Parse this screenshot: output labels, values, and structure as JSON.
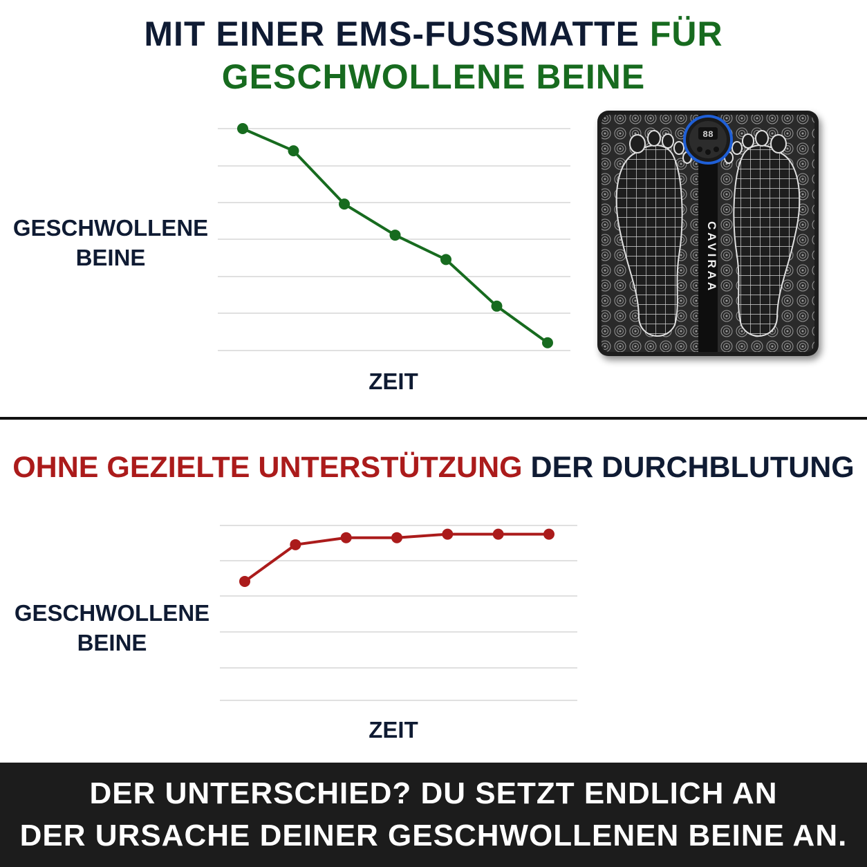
{
  "headline_top": {
    "part1": "MIT EINER EMS-FUSSMATTE ",
    "part2": "FÜR",
    "line2": "GESCHWOLLENE BEINE"
  },
  "headline_mid": {
    "part1": "OHNE GEZIELTE UNTERSTÜTZUNG",
    "part2": " DER DURCHBLUTUNG"
  },
  "footer": {
    "line1": "DER UNTERSCHIED? DU SETZT ENDLICH AN",
    "line2": "DER URSACHE DEINER GESCHWOLLENEN BEINE AN."
  },
  "product": {
    "brand": "CAVIRAA",
    "display": "88",
    "icon": "foot-massage-mat"
  },
  "colors": {
    "navy": "#0f1b33",
    "green": "#176b1f",
    "red": "#ab1b1b",
    "footer_bg": "#1c1c1c"
  },
  "chart_data": [
    {
      "type": "line",
      "title": "",
      "xlabel": "ZEIT",
      "ylabel": "GESCHWOLLENE BEINE",
      "grid": true,
      "series": [
        {
          "color": "#176b1f",
          "values": [
            100,
            90,
            66,
            52,
            41,
            20,
            3.5
          ]
        }
      ],
      "ylim": [
        0,
        100
      ]
    },
    {
      "type": "line",
      "title": "",
      "xlabel": "ZEIT",
      "ylabel": "GESCHWOLLENE BEINE",
      "grid": true,
      "series": [
        {
          "color": "#ab1b1b",
          "values": [
            68,
            89,
            93,
            93,
            95,
            95,
            95
          ]
        }
      ],
      "ylim": [
        0,
        100
      ]
    }
  ]
}
